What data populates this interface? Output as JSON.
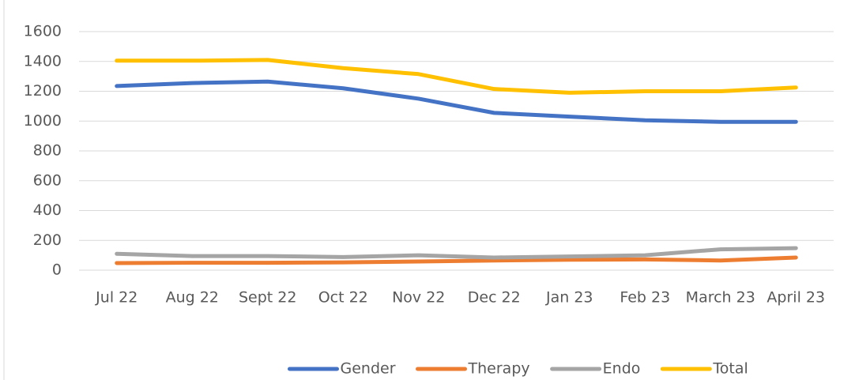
{
  "chart_data": {
    "type": "line",
    "categories": [
      "Jul 22",
      "Aug 22",
      "Sept 22",
      "Oct 22",
      "Nov 22",
      "Dec 22",
      "Jan 23",
      "Feb 23",
      "March 23",
      "April 23"
    ],
    "series": [
      {
        "name": "Gender",
        "color": "#4472c4",
        "values": [
          1235,
          1255,
          1265,
          1220,
          1150,
          1055,
          1030,
          1005,
          995,
          995
        ]
      },
      {
        "name": "Therapy",
        "color": "#ed7d31",
        "values": [
          48,
          50,
          50,
          52,
          58,
          65,
          70,
          72,
          65,
          85
        ]
      },
      {
        "name": "Endo",
        "color": "#a5a5a5",
        "values": [
          110,
          95,
          95,
          88,
          100,
          85,
          92,
          100,
          140,
          148
        ]
      },
      {
        "name": "Total",
        "color": "#ffc000",
        "values": [
          1405,
          1405,
          1410,
          1355,
          1315,
          1215,
          1190,
          1200,
          1200,
          1225
        ]
      }
    ],
    "ylim": [
      0,
      1600
    ],
    "yticks": [
      0,
      200,
      400,
      600,
      800,
      1000,
      1200,
      1400,
      1600
    ],
    "grid": true,
    "legend": "bottom"
  }
}
